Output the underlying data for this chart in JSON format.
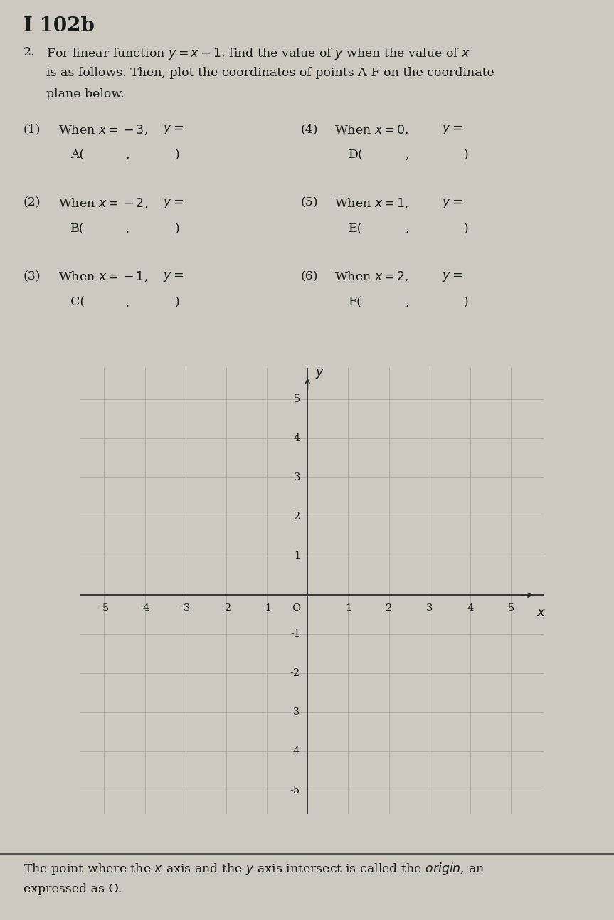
{
  "title": "I 102b",
  "background_color": "#cdc9c0",
  "problem_number": "2.",
  "problem_line1": " For linear function $y = x - 1$, find the value of $y$ when the value of $x$",
  "problem_line2": "    is as follows. Then, plot the coordinates of points A-F on the coordinate",
  "problem_line3": "    plane below.",
  "items": [
    {
      "num": "(1)",
      "cond": "When $x = -3$,",
      "ypart": "$y =$",
      "pt": "A(",
      "comma": ",",
      "rp": ")"
    },
    {
      "num": "(2)",
      "cond": "When $x = -2$,",
      "ypart": "$y =$",
      "pt": "B(",
      "comma": ",",
      "rp": ")"
    },
    {
      "num": "(3)",
      "cond": "When $x = -1$,",
      "ypart": "$y =$",
      "pt": "C(",
      "comma": ",",
      "rp": ")"
    },
    {
      "num": "(4)",
      "cond": "When $x = 0$,",
      "ypart": "$y =$",
      "pt": "D(",
      "comma": ",",
      "rp": ")"
    },
    {
      "num": "(5)",
      "cond": "When $x = 1$,",
      "ypart": "$y =$",
      "pt": "E(",
      "comma": ",",
      "rp": ")"
    },
    {
      "num": "(6)",
      "cond": "When $x = 2$,",
      "ypart": "$y =$",
      "pt": "F(",
      "comma": ",",
      "rp": ")"
    }
  ],
  "footer_line1": "The point where the $x$-axis and the $y$-axis intersect is called the $\\mathbf{\\mathit{origin}}$, an",
  "footer_line2": "expressed as O.",
  "grid_xlim": [
    -5.6,
    5.8
  ],
  "grid_ylim": [
    -5.6,
    5.8
  ],
  "grid_xticks": [
    -5,
    -4,
    -3,
    -2,
    -1,
    0,
    1,
    2,
    3,
    4,
    5
  ],
  "grid_yticks": [
    -5,
    -4,
    -3,
    -2,
    -1,
    0,
    1,
    2,
    3,
    4,
    5
  ],
  "grid_color": "#b0aca4",
  "axis_color": "#2a2a2a",
  "text_color": "#1a1a1a",
  "fs_title": 20,
  "fs_body": 12.5,
  "fs_tick": 10.5,
  "fs_axlabel": 13
}
